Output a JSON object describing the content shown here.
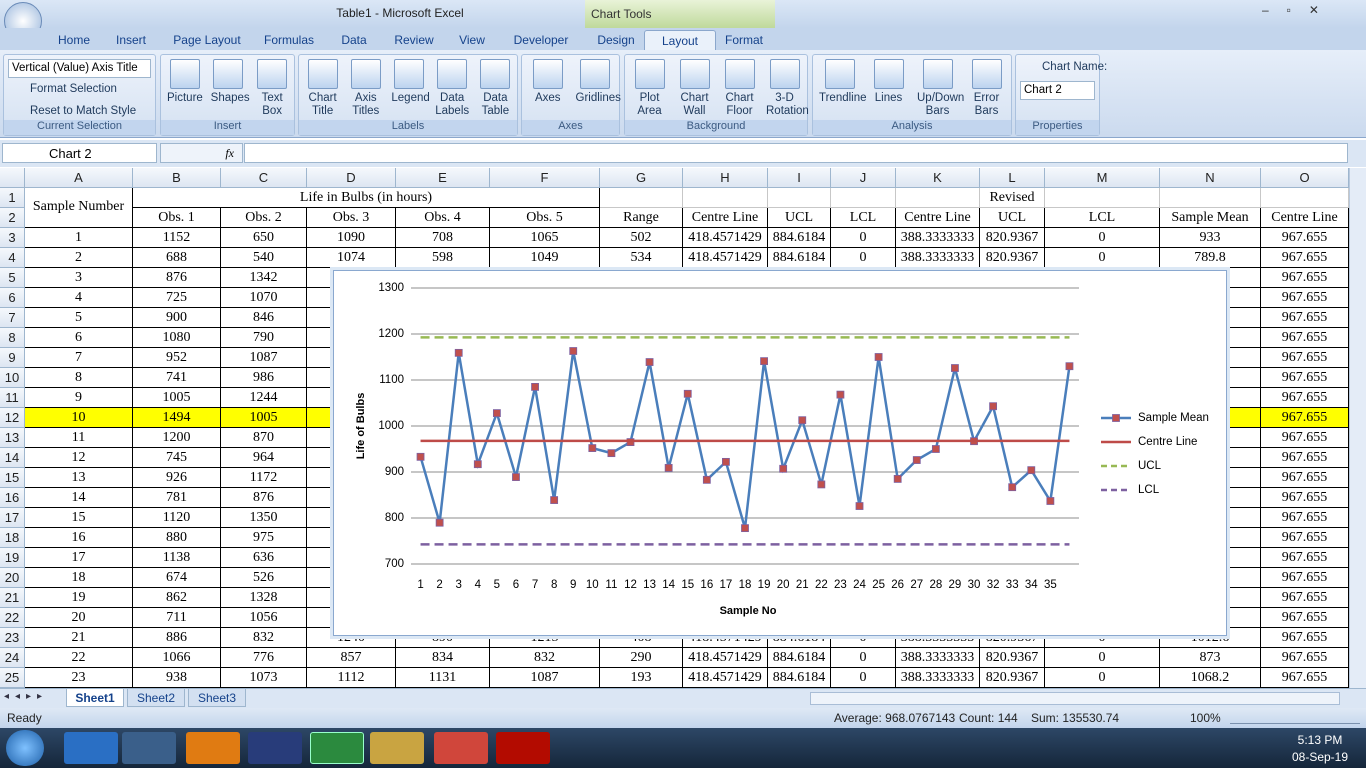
{
  "window": {
    "title": "Table1 - Microsoft Excel",
    "context_tab": "Chart Tools"
  },
  "tabs": [
    "Home",
    "Insert",
    "Page Layout",
    "Formulas",
    "Data",
    "Review",
    "View",
    "Developer",
    "Design",
    "Layout",
    "Format"
  ],
  "active_tab": 9,
  "ribbon_groups": [
    {
      "name": "Current Selection",
      "items": [
        "Vertical (Value) Axis Title",
        "Format Selection",
        "Reset to Match Style"
      ]
    },
    {
      "name": "Insert",
      "buttons": [
        "Picture",
        "Shapes",
        "Text Box"
      ]
    },
    {
      "name": "Labels",
      "buttons": [
        "Chart Title",
        "Axis Titles",
        "Legend",
        "Data Labels",
        "Data Table"
      ]
    },
    {
      "name": "Axes",
      "buttons": [
        "Axes",
        "Gridlines"
      ]
    },
    {
      "name": "Background",
      "buttons": [
        "Plot Area",
        "Chart Wall",
        "Chart Floor",
        "3-D Rotation"
      ]
    },
    {
      "name": "Analysis",
      "buttons": [
        "Trendline",
        "Lines",
        "Up/Down Bars",
        "Error Bars"
      ]
    },
    {
      "name": "Properties",
      "items": [
        "Chart Name:",
        "Chart 2"
      ]
    }
  ],
  "name_box": "Chart 2",
  "formula_label": "fx",
  "sheet": {
    "columns": [
      "A",
      "B",
      "C",
      "D",
      "E",
      "F",
      "G",
      "H",
      "I",
      "J",
      "K",
      "L",
      "M",
      "N",
      "O"
    ],
    "row_numbers": [
      1,
      2,
      3,
      4,
      5,
      6,
      7,
      8,
      9,
      10,
      11,
      12,
      13,
      14,
      15,
      16,
      17,
      18,
      19,
      20,
      21,
      22,
      23,
      24,
      25
    ],
    "header": {
      "sample_number": "Sample Number",
      "title": "Life in Bulbs (in hours)",
      "revised": "Revised",
      "columns": [
        "Obs. 1",
        "Obs. 2",
        "Obs. 3",
        "Obs. 4",
        "Obs. 5",
        "Range",
        "Centre Line",
        "UCL",
        "LCL",
        "Centre Line",
        "UCL",
        "LCL",
        "Sample Mean",
        "Centre Line"
      ]
    },
    "rows": [
      [
        1,
        1152,
        650,
        1090,
        708,
        1065,
        502,
        418.4571429,
        884.6184,
        0,
        388.3333333,
        820.9367,
        0,
        933,
        967.655
      ],
      [
        2,
        688,
        540,
        1074,
        598,
        1049,
        534,
        418.4571429,
        884.6184,
        0,
        388.3333333,
        820.9367,
        0,
        789.8,
        967.655
      ],
      [
        3,
        876,
        1342,
        null,
        null,
        null,
        null,
        null,
        null,
        null,
        null,
        null,
        null,
        null,
        967.655
      ],
      [
        4,
        725,
        1070,
        null,
        null,
        null,
        null,
        null,
        null,
        null,
        null,
        null,
        null,
        null,
        967.655
      ],
      [
        5,
        900,
        846,
        null,
        null,
        null,
        null,
        null,
        null,
        null,
        null,
        null,
        null,
        null,
        967.655
      ],
      [
        6,
        1080,
        790,
        null,
        null,
        null,
        null,
        null,
        null,
        null,
        null,
        null,
        null,
        null,
        967.655
      ],
      [
        7,
        952,
        1087,
        null,
        null,
        null,
        null,
        null,
        null,
        null,
        null,
        null,
        null,
        null,
        967.655
      ],
      [
        8,
        741,
        986,
        null,
        null,
        null,
        null,
        null,
        null,
        null,
        null,
        null,
        null,
        null,
        967.655
      ],
      [
        9,
        1005,
        1244,
        null,
        null,
        null,
        null,
        null,
        null,
        null,
        null,
        null,
        null,
        null,
        967.655
      ],
      [
        10,
        1494,
        1005,
        null,
        null,
        null,
        null,
        null,
        null,
        null,
        null,
        null,
        null,
        null,
        967.655
      ],
      [
        11,
        1200,
        870,
        null,
        null,
        null,
        null,
        null,
        null,
        null,
        null,
        null,
        null,
        null,
        967.655
      ],
      [
        12,
        745,
        964,
        null,
        null,
        null,
        null,
        null,
        null,
        null,
        null,
        null,
        null,
        null,
        967.655
      ],
      [
        13,
        926,
        1172,
        null,
        null,
        null,
        null,
        null,
        null,
        null,
        null,
        null,
        null,
        null,
        967.655
      ],
      [
        14,
        781,
        876,
        null,
        null,
        null,
        null,
        null,
        null,
        null,
        null,
        null,
        null,
        null,
        967.655
      ],
      [
        15,
        1120,
        1350,
        null,
        null,
        null,
        null,
        null,
        null,
        null,
        null,
        null,
        null,
        null,
        967.655
      ],
      [
        16,
        880,
        975,
        null,
        null,
        null,
        null,
        null,
        null,
        null,
        null,
        null,
        null,
        null,
        967.655
      ],
      [
        17,
        1138,
        636,
        null,
        null,
        null,
        null,
        null,
        null,
        null,
        null,
        null,
        null,
        null,
        967.655
      ],
      [
        18,
        674,
        526,
        null,
        null,
        null,
        null,
        null,
        null,
        null,
        null,
        null,
        null,
        null,
        967.655
      ],
      [
        19,
        862,
        1328,
        null,
        null,
        null,
        null,
        null,
        null,
        null,
        null,
        null,
        null,
        null,
        967.655
      ],
      [
        20,
        711,
        1056,
        null,
        null,
        null,
        null,
        null,
        null,
        null,
        null,
        null,
        null,
        null,
        967.655
      ],
      [
        21,
        886,
        832,
        1240,
        890,
        1215,
        408,
        418.4571429,
        884.6184,
        0,
        388.3333333,
        820.9367,
        0,
        1012.6,
        967.655
      ],
      [
        22,
        1066,
        776,
        857,
        834,
        832,
        290,
        418.4571429,
        884.6184,
        0,
        388.3333333,
        820.9367,
        0,
        873,
        967.655
      ],
      [
        23,
        938,
        1073,
        1112,
        1131,
        1087,
        193,
        418.4571429,
        884.6184,
        0,
        388.3333333,
        820.9367,
        0,
        1068.2,
        967.655
      ]
    ],
    "highlight": {
      "row": 9,
      "color": "#ffff00"
    }
  },
  "sheet_tabs": [
    "Sheet1",
    "Sheet2",
    "Sheet3"
  ],
  "active_sheet": 0,
  "status": {
    "ready": "Ready",
    "average": "Average: 968.0767143",
    "count": "Count: 144",
    "sum": "Sum: 135530.74",
    "zoom": "100%"
  },
  "taskbar": {
    "time": "5:13 PM",
    "date": "08-Sep-19"
  },
  "chart_data": {
    "type": "line",
    "x_label": "Sample No",
    "y_label": "Life of Bulbs",
    "categories": [
      1,
      2,
      3,
      4,
      5,
      6,
      7,
      8,
      9,
      10,
      11,
      12,
      13,
      14,
      15,
      16,
      17,
      18,
      19,
      20,
      21,
      22,
      23,
      24,
      25,
      26,
      27,
      28,
      29,
      30,
      32,
      33,
      34,
      35,
      null
    ],
    "ylim": [
      700,
      1300
    ],
    "yticks": [
      700,
      800,
      900,
      1000,
      1100,
      1200,
      1300
    ],
    "grid": true,
    "legend": "right",
    "series": [
      {
        "name": "Sample Mean",
        "color": "#4a7ebb",
        "marker": "#c0504d",
        "dashed": false,
        "values": [
          933,
          789.8,
          1159,
          917,
          1028,
          889,
          1085,
          839,
          1163,
          952,
          941,
          965,
          1139,
          909,
          1070,
          883,
          922,
          778,
          1141,
          907,
          1012.6,
          873,
          1068.2,
          826,
          1150,
          885,
          926,
          950,
          1126,
          967,
          1043,
          867,
          904,
          837,
          1130
        ]
      },
      {
        "name": "Centre Line",
        "color": "#be4b48",
        "dashed": false,
        "values": [
          967.655,
          967.655,
          967.655,
          967.655,
          967.655,
          967.655,
          967.655,
          967.655,
          967.655,
          967.655,
          967.655,
          967.655,
          967.655,
          967.655,
          967.655,
          967.655,
          967.655,
          967.655,
          967.655,
          967.655,
          967.655,
          967.655,
          967.655,
          967.655,
          967.655,
          967.655,
          967.655,
          967.655,
          967.655,
          967.655,
          967.655,
          967.655,
          967.655,
          967.655,
          967.655
        ]
      },
      {
        "name": "UCL",
        "color": "#98b954",
        "dashed": true,
        "values": [
          1192.6,
          1192.6,
          1192.6,
          1192.6,
          1192.6,
          1192.6,
          1192.6,
          1192.6,
          1192.6,
          1192.6,
          1192.6,
          1192.6,
          1192.6,
          1192.6,
          1192.6,
          1192.6,
          1192.6,
          1192.6,
          1192.6,
          1192.6,
          1192.6,
          1192.6,
          1192.6,
          1192.6,
          1192.6,
          1192.6,
          1192.6,
          1192.6,
          1192.6,
          1192.6,
          1192.6,
          1192.6,
          1192.6,
          1192.6,
          1192.6
        ]
      },
      {
        "name": "LCL",
        "color": "#7d60a0",
        "dashed": true,
        "values": [
          742.7,
          742.7,
          742.7,
          742.7,
          742.7,
          742.7,
          742.7,
          742.7,
          742.7,
          742.7,
          742.7,
          742.7,
          742.7,
          742.7,
          742.7,
          742.7,
          742.7,
          742.7,
          742.7,
          742.7,
          742.7,
          742.7,
          742.7,
          742.7,
          742.7,
          742.7,
          742.7,
          742.7,
          742.7,
          742.7,
          742.7,
          742.7,
          742.7,
          742.7,
          742.7
        ]
      }
    ]
  }
}
